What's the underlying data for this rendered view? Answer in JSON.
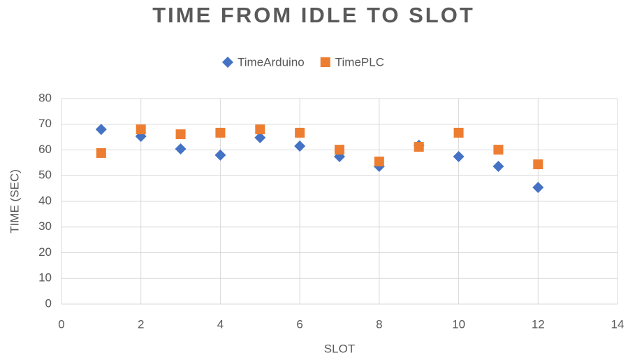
{
  "chart_data": {
    "type": "scatter",
    "title": "TIME FROM IDLE TO SLOT",
    "x_label": "SLOT",
    "y_label": "TIME (SEC)",
    "x": [
      1,
      2,
      3,
      4,
      5,
      6,
      7,
      8,
      9,
      10,
      11,
      12
    ],
    "series": [
      {
        "name": "TimeArduino",
        "color": "#4472c4",
        "marker": "diamond",
        "values": [
          68.0,
          65.3,
          60.4,
          58.0,
          64.8,
          61.5,
          57.4,
          53.6,
          61.8,
          57.4,
          53.6,
          45.4
        ]
      },
      {
        "name": "TimePLC",
        "color": "#ed7d31",
        "marker": "square",
        "values": [
          58.8,
          68.0,
          66.1,
          66.7,
          68.0,
          66.7,
          60.1,
          55.5,
          61.2,
          66.7,
          60.1,
          54.4
        ]
      }
    ],
    "xlim": [
      0,
      14
    ],
    "xticks": [
      0,
      2,
      4,
      6,
      8,
      10,
      12,
      14
    ],
    "ylim": [
      0,
      80
    ],
    "yticks": [
      0,
      10,
      20,
      30,
      40,
      50,
      60,
      70,
      80
    ],
    "grid": true,
    "legend": "top"
  }
}
